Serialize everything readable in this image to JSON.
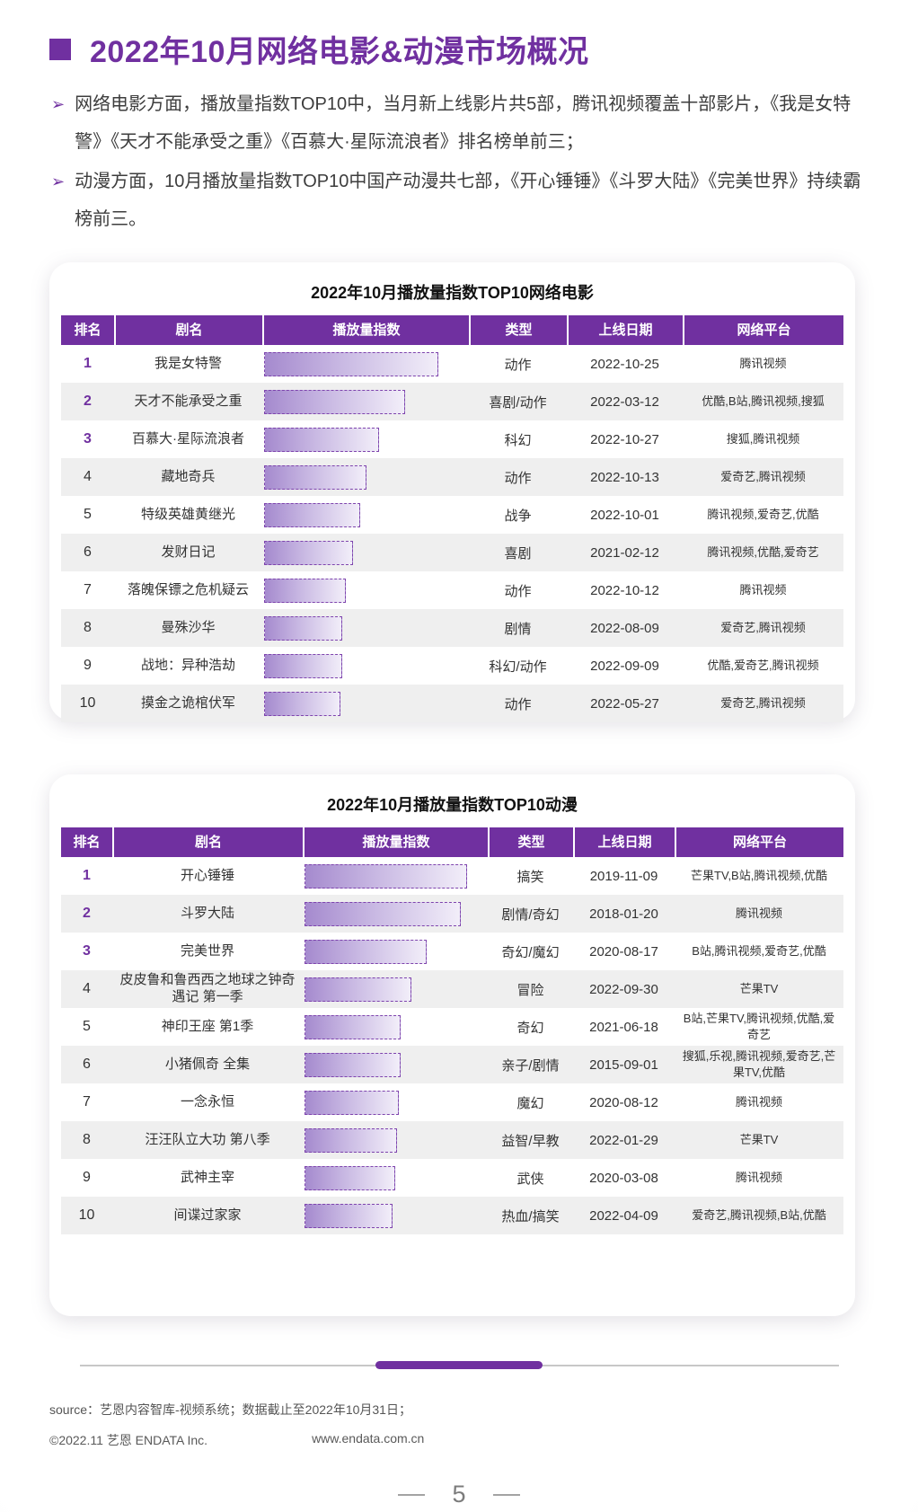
{
  "page": {
    "title": "2022年10月网络电影&动漫市场概况",
    "bullets": [
      "网络电影方面，播放量指数TOP10中，当月新上线影片共5部，腾讯视频覆盖十部影片，《我是女特警》《天才不能承受之重》《百慕大·星际流浪者》排名榜单前三；",
      "动漫方面，10月播放量指数TOP10中国产动漫共七部，《开心锤锤》《斗罗大陆》《完美世界》持续霸榜前三。"
    ],
    "page_number": "5"
  },
  "icons": {
    "bullet_arrow": "➢"
  },
  "colors": {
    "accent_purple": "#7030A0",
    "row_alt": "#EFEFEF",
    "bar_gradient_start": "#A58ACE",
    "bar_gradient_end": "#F2EEF9",
    "bar_border": "#7E44AD"
  },
  "chart_data": [
    {
      "type": "table",
      "title": "2022年10月播放量指数TOP10网络电影",
      "columns": [
        "排名",
        "剧名",
        "播放量指数",
        "类型",
        "上线日期",
        "网络平台"
      ],
      "bar_value_note": "播放量指数 shown as bars, estimated % of top bar",
      "rows": [
        {
          "rank": 1,
          "name": "我是女特警",
          "index_pct": 100,
          "type": "动作",
          "date": "2022-10-25",
          "platforms": "腾讯视频"
        },
        {
          "rank": 2,
          "name": "天才不能承受之重",
          "index_pct": 81,
          "type": "喜剧/动作",
          "date": "2022-03-12",
          "platforms": "优酷,B站,腾讯视频,搜狐"
        },
        {
          "rank": 3,
          "name": "百慕大·星际流浪者",
          "index_pct": 66,
          "type": "科幻",
          "date": "2022-10-27",
          "platforms": "搜狐,腾讯视频"
        },
        {
          "rank": 4,
          "name": "藏地奇兵",
          "index_pct": 59,
          "type": "动作",
          "date": "2022-10-13",
          "platforms": "爱奇艺,腾讯视频"
        },
        {
          "rank": 5,
          "name": "特级英雄黄继光",
          "index_pct": 55,
          "type": "战争",
          "date": "2022-10-01",
          "platforms": "腾讯视频,爱奇艺,优酷"
        },
        {
          "rank": 6,
          "name": "发财日记",
          "index_pct": 51,
          "type": "喜剧",
          "date": "2021-02-12",
          "platforms": "腾讯视频,优酷,爱奇艺"
        },
        {
          "rank": 7,
          "name": "落魄保镖之危机疑云",
          "index_pct": 47,
          "type": "动作",
          "date": "2022-10-12",
          "platforms": "腾讯视频"
        },
        {
          "rank": 8,
          "name": "曼殊沙华",
          "index_pct": 45,
          "type": "剧情",
          "date": "2022-08-09",
          "platforms": "爱奇艺,腾讯视频"
        },
        {
          "rank": 9,
          "name": "战地：异种浩劫",
          "index_pct": 45,
          "type": "科幻/动作",
          "date": "2022-09-09",
          "platforms": "优酷,爱奇艺,腾讯视频"
        },
        {
          "rank": 10,
          "name": "摸金之诡棺伏军",
          "index_pct": 44,
          "type": "动作",
          "date": "2022-05-27",
          "platforms": "爱奇艺,腾讯视频"
        }
      ]
    },
    {
      "type": "table",
      "title": "2022年10月播放量指数TOP10动漫",
      "columns": [
        "排名",
        "剧名",
        "播放量指数",
        "类型",
        "上线日期",
        "网络平台"
      ],
      "bar_value_note": "播放量指数 shown as bars, estimated % of top bar",
      "rows": [
        {
          "rank": 1,
          "name": "开心锤锤",
          "index_pct": 100,
          "type": "搞笑",
          "date": "2019-11-09",
          "platforms": "芒果TV,B站,腾讯视频,优酷"
        },
        {
          "rank": 2,
          "name": "斗罗大陆",
          "index_pct": 96,
          "type": "剧情/奇幻",
          "date": "2018-01-20",
          "platforms": "腾讯视频"
        },
        {
          "rank": 3,
          "name": "完美世界",
          "index_pct": 75,
          "type": "奇幻/魔幻",
          "date": "2020-08-17",
          "platforms": "B站,腾讯视频,爱奇艺,优酷"
        },
        {
          "rank": 4,
          "name": "皮皮鲁和鲁西西之地球之钟奇遇记 第一季",
          "index_pct": 66,
          "type": "冒险",
          "date": "2022-09-30",
          "platforms": "芒果TV"
        },
        {
          "rank": 5,
          "name": "神印王座 第1季",
          "index_pct": 59,
          "type": "奇幻",
          "date": "2021-06-18",
          "platforms": "B站,芒果TV,腾讯视频,优酷,爱奇艺"
        },
        {
          "rank": 6,
          "name": "小猪佩奇 全集",
          "index_pct": 59,
          "type": "亲子/剧情",
          "date": "2015-09-01",
          "platforms": "搜狐,乐视,腾讯视频,爱奇艺,芒果TV,优酷"
        },
        {
          "rank": 7,
          "name": "一念永恒",
          "index_pct": 58,
          "type": "魔幻",
          "date": "2020-08-12",
          "platforms": "腾讯视频"
        },
        {
          "rank": 8,
          "name": "汪汪队立大功 第八季",
          "index_pct": 57,
          "type": "益智/早教",
          "date": "2022-01-29",
          "platforms": "芒果TV"
        },
        {
          "rank": 9,
          "name": "武神主宰",
          "index_pct": 56,
          "type": "武侠",
          "date": "2020-03-08",
          "platforms": "腾讯视频"
        },
        {
          "rank": 10,
          "name": "间谍过家家",
          "index_pct": 54,
          "type": "热血/搞笑",
          "date": "2022-04-09",
          "platforms": "爱奇艺,腾讯视频,B站,优酷"
        }
      ]
    }
  ],
  "footer": {
    "source": "source：艺恩内容智库-视频系统；数据截止至2022年10月31日；",
    "copyright": "©2022.11 艺恩 ENDATA Inc.",
    "website": "www.endata.com.cn"
  }
}
